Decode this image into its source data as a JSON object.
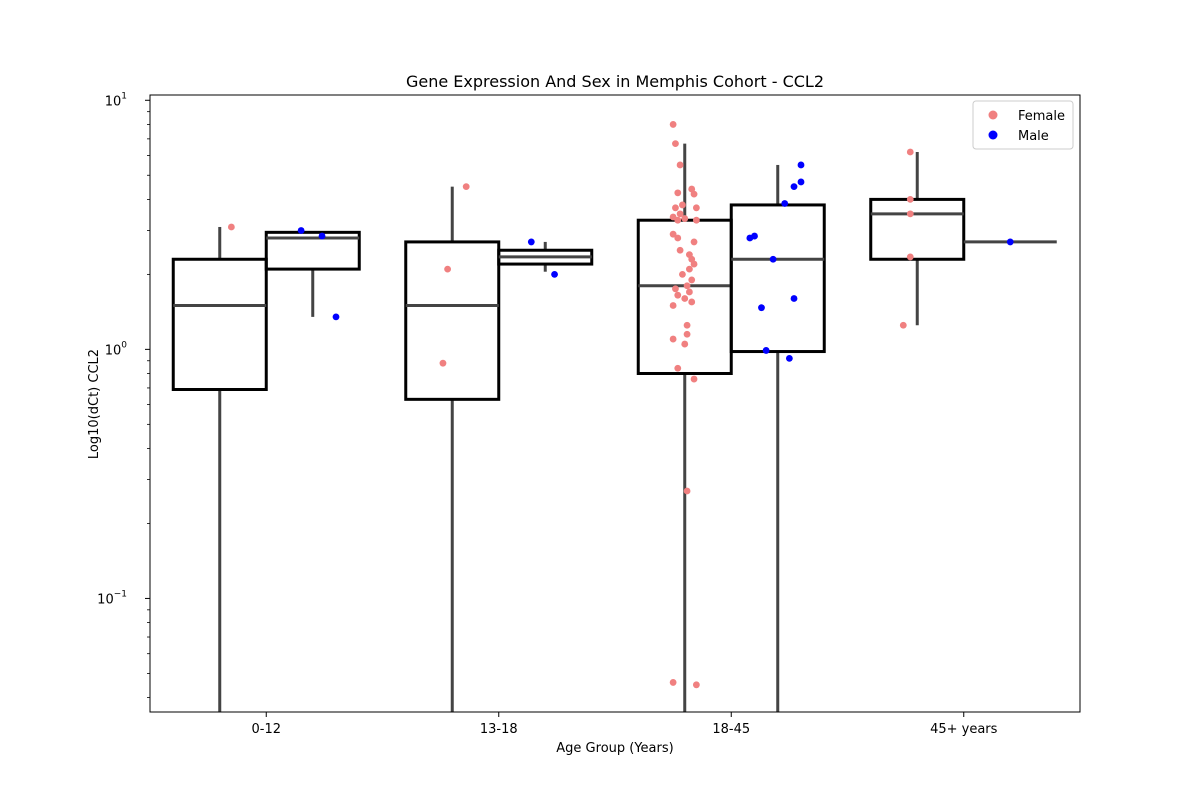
{
  "chart_data": {
    "type": "box",
    "title": "Gene Expression And Sex in Memphis Cohort - CCL2",
    "xlabel": "Age Group (Years)",
    "ylabel": "Log10(dCt) CCL2",
    "yscale": "log",
    "ylim": [
      0.035,
      10.5
    ],
    "yticks": [
      {
        "value": 10,
        "base": "10",
        "exp": "1"
      },
      {
        "value": 1,
        "base": "10",
        "exp": "0"
      },
      {
        "value": 0.1,
        "base": "10",
        "exp": "−1"
      }
    ],
    "categories": [
      "0-12",
      "13-18",
      "18-45",
      "45+ years"
    ],
    "legend": {
      "position": "top-right"
    },
    "series": [
      {
        "name": "Female",
        "color": "#f08080",
        "boxes": [
          {
            "category": "0-12",
            "whisker_low": 0.035,
            "q1": 0.69,
            "median": 1.5,
            "q3": 2.3,
            "whisker_high": 3.1
          },
          {
            "category": "13-18",
            "whisker_low": 0.035,
            "q1": 0.63,
            "median": 1.5,
            "q3": 2.7,
            "whisker_high": 4.5
          },
          {
            "category": "18-45",
            "whisker_low": 0.035,
            "q1": 0.8,
            "median": 1.8,
            "q3": 3.3,
            "whisker_high": 6.7
          },
          {
            "category": "45+ years",
            "whisker_low": 1.25,
            "q1": 2.3,
            "median": 3.5,
            "q3": 4.0,
            "whisker_high": 6.2
          }
        ],
        "points": [
          {
            "category": "0-12",
            "jitter": 0.05,
            "y": 3.1
          },
          {
            "category": "13-18",
            "jitter": 0.06,
            "y": 4.5
          },
          {
            "category": "13-18",
            "jitter": -0.02,
            "y": 2.1
          },
          {
            "category": "13-18",
            "jitter": -0.04,
            "y": 0.88
          },
          {
            "category": "18-45",
            "jitter": -0.05,
            "y": 8.0
          },
          {
            "category": "18-45",
            "jitter": -0.04,
            "y": 6.7
          },
          {
            "category": "18-45",
            "jitter": -0.02,
            "y": 5.5
          },
          {
            "category": "18-45",
            "jitter": 0.03,
            "y": 4.4
          },
          {
            "category": "18-45",
            "jitter": -0.03,
            "y": 4.25
          },
          {
            "category": "18-45",
            "jitter": 0.04,
            "y": 4.2
          },
          {
            "category": "18-45",
            "jitter": -0.01,
            "y": 3.8
          },
          {
            "category": "18-45",
            "jitter": -0.04,
            "y": 3.7
          },
          {
            "category": "18-45",
            "jitter": 0.05,
            "y": 3.7
          },
          {
            "category": "18-45",
            "jitter": -0.02,
            "y": 3.5
          },
          {
            "category": "18-45",
            "jitter": -0.05,
            "y": 3.4
          },
          {
            "category": "18-45",
            "jitter": 0.0,
            "y": 3.35
          },
          {
            "category": "18-45",
            "jitter": -0.03,
            "y": 3.3
          },
          {
            "category": "18-45",
            "jitter": 0.05,
            "y": 3.3
          },
          {
            "category": "18-45",
            "jitter": -0.05,
            "y": 2.9
          },
          {
            "category": "18-45",
            "jitter": -0.03,
            "y": 2.8
          },
          {
            "category": "18-45",
            "jitter": 0.04,
            "y": 2.7
          },
          {
            "category": "18-45",
            "jitter": -0.02,
            "y": 2.5
          },
          {
            "category": "18-45",
            "jitter": 0.02,
            "y": 2.4
          },
          {
            "category": "18-45",
            "jitter": 0.03,
            "y": 2.3
          },
          {
            "category": "18-45",
            "jitter": 0.04,
            "y": 2.2
          },
          {
            "category": "18-45",
            "jitter": 0.02,
            "y": 2.1
          },
          {
            "category": "18-45",
            "jitter": -0.01,
            "y": 2.0
          },
          {
            "category": "18-45",
            "jitter": 0.03,
            "y": 1.9
          },
          {
            "category": "18-45",
            "jitter": 0.01,
            "y": 1.8
          },
          {
            "category": "18-45",
            "jitter": -0.04,
            "y": 1.75
          },
          {
            "category": "18-45",
            "jitter": 0.02,
            "y": 1.7
          },
          {
            "category": "18-45",
            "jitter": -0.03,
            "y": 1.65
          },
          {
            "category": "18-45",
            "jitter": 0.0,
            "y": 1.6
          },
          {
            "category": "18-45",
            "jitter": 0.03,
            "y": 1.55
          },
          {
            "category": "18-45",
            "jitter": -0.05,
            "y": 1.5
          },
          {
            "category": "18-45",
            "jitter": 0.01,
            "y": 1.25
          },
          {
            "category": "18-45",
            "jitter": 0.01,
            "y": 1.15
          },
          {
            "category": "18-45",
            "jitter": -0.05,
            "y": 1.1
          },
          {
            "category": "18-45",
            "jitter": 0.0,
            "y": 1.05
          },
          {
            "category": "18-45",
            "jitter": -0.03,
            "y": 0.84
          },
          {
            "category": "18-45",
            "jitter": 0.04,
            "y": 0.76
          },
          {
            "category": "18-45",
            "jitter": 0.01,
            "y": 0.27
          },
          {
            "category": "18-45",
            "jitter": -0.05,
            "y": 0.046
          },
          {
            "category": "18-45",
            "jitter": 0.05,
            "y": 0.045
          },
          {
            "category": "45+ years",
            "jitter": -0.03,
            "y": 6.2
          },
          {
            "category": "45+ years",
            "jitter": -0.03,
            "y": 4.0
          },
          {
            "category": "45+ years",
            "jitter": -0.03,
            "y": 3.5
          },
          {
            "category": "45+ years",
            "jitter": -0.03,
            "y": 2.35
          },
          {
            "category": "45+ years",
            "jitter": -0.06,
            "y": 1.25
          }
        ]
      },
      {
        "name": "Male",
        "color": "#0000ff",
        "boxes": [
          {
            "category": "0-12",
            "whisker_low": 1.35,
            "q1": 2.1,
            "median": 2.8,
            "q3": 2.95,
            "whisker_high": 2.95
          },
          {
            "category": "13-18",
            "whisker_low": 2.05,
            "q1": 2.2,
            "median": 2.35,
            "q3": 2.5,
            "whisker_high": 2.7
          },
          {
            "category": "18-45",
            "whisker_low": 0.035,
            "q1": 0.98,
            "median": 2.3,
            "q3": 3.8,
            "whisker_high": 5.5
          },
          {
            "category": "45+ years",
            "whisker_low": 2.7,
            "q1": 2.7,
            "median": 2.7,
            "q3": 2.7,
            "whisker_high": 2.7
          }
        ],
        "points": [
          {
            "category": "0-12",
            "jitter": -0.05,
            "y": 3.0
          },
          {
            "category": "0-12",
            "jitter": 0.04,
            "y": 2.85
          },
          {
            "category": "0-12",
            "jitter": 0.1,
            "y": 1.35
          },
          {
            "category": "13-18",
            "jitter": -0.06,
            "y": 2.7
          },
          {
            "category": "13-18",
            "jitter": 0.04,
            "y": 2.0
          },
          {
            "category": "18-45",
            "jitter": 0.1,
            "y": 5.5
          },
          {
            "category": "18-45",
            "jitter": 0.1,
            "y": 4.7
          },
          {
            "category": "18-45",
            "jitter": 0.07,
            "y": 4.5
          },
          {
            "category": "18-45",
            "jitter": 0.03,
            "y": 3.85
          },
          {
            "category": "18-45",
            "jitter": -0.1,
            "y": 2.85
          },
          {
            "category": "18-45",
            "jitter": -0.12,
            "y": 2.8
          },
          {
            "category": "18-45",
            "jitter": -0.02,
            "y": 2.3
          },
          {
            "category": "18-45",
            "jitter": 0.07,
            "y": 1.6
          },
          {
            "category": "18-45",
            "jitter": -0.07,
            "y": 1.47
          },
          {
            "category": "18-45",
            "jitter": -0.05,
            "y": 0.99
          },
          {
            "category": "18-45",
            "jitter": 0.05,
            "y": 0.92
          },
          {
            "category": "45+ years",
            "jitter": 0.0,
            "y": 2.7
          }
        ]
      }
    ]
  }
}
